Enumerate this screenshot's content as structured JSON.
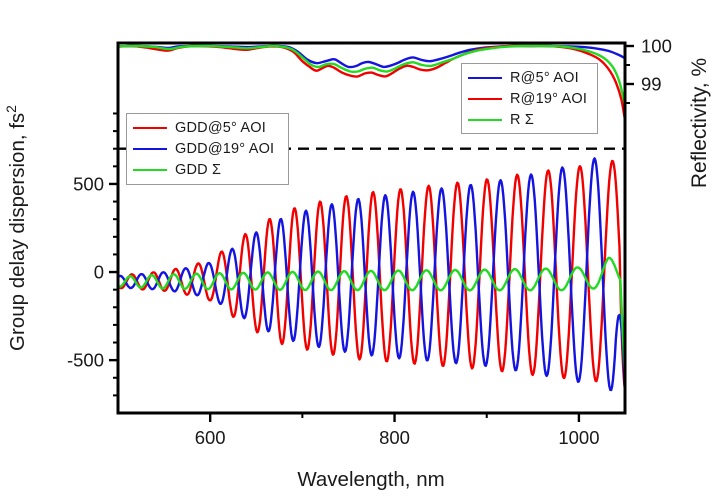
{
  "figure": {
    "background": "#ffffff"
  },
  "colors": {
    "red": "#f20000",
    "blue": "#1414e0",
    "green": "#21da21",
    "axis": "#000000",
    "legend_border": "#9a9a9a"
  },
  "axes": {
    "x": {
      "title": "Wavelength, nm",
      "min": 500,
      "max": 1050,
      "major_ticks": [
        600,
        800,
        1000
      ],
      "major_tick_labels": [
        "600",
        "800",
        "1000"
      ],
      "minor_ticks": [
        700,
        900
      ]
    },
    "y_left": {
      "title_main": "Group delay dispersion, fs",
      "title_sup": "2",
      "range": [
        -800,
        1300
      ],
      "major_ticks": [
        500,
        0,
        -500
      ],
      "major_tick_labels": [
        "500",
        "0",
        "-500"
      ],
      "minor_tick_step": 100,
      "minor_tick_range": [
        -700,
        900
      ]
    },
    "y_right": {
      "title": "Reflectivity, %",
      "major_ticks": [
        100,
        99
      ],
      "major_tick_labels": [
        "100",
        "99"
      ],
      "minor_ticks": [
        99.5,
        98.5
      ]
    }
  },
  "legend_gdd": {
    "items": [
      {
        "label": "GDD@5° AOI",
        "color": "#f20000"
      },
      {
        "label": "GDD@19° AOI",
        "color": "#1414e0"
      },
      {
        "label": "GDD Σ",
        "color": "#21da21"
      }
    ]
  },
  "legend_r": {
    "items": [
      {
        "label": "R@5° AOI",
        "color": "#1414e0"
      },
      {
        "label": "R@19° AOI",
        "color": "#f20000"
      },
      {
        "label": "R Σ",
        "color": "#21da21"
      }
    ]
  },
  "chart_data": {
    "type": "line",
    "title": "",
    "xlabel": "Wavelength, nm",
    "ylabel_left": "Group delay dispersion, fs²",
    "ylabel_right": "Reflectivity, %",
    "x_range_nm": [
      500,
      1050
    ],
    "gdd_axis_range": [
      -800,
      1300
    ],
    "reflectivity_axis": {
      "labeled_ticks": [
        100,
        99
      ],
      "minor_ticks": [
        99.5,
        98.5
      ]
    },
    "separator_line": {
      "gdd_value": 700,
      "style": "dashed",
      "color": "#000000"
    },
    "reflectivity_series": [
      {
        "name": "R@5° AOI",
        "color": "#1414e0",
        "points": [
          [
            500,
            99.99
          ],
          [
            520,
            100
          ],
          [
            540,
            99.98
          ],
          [
            555,
            99.95
          ],
          [
            565,
            99.99
          ],
          [
            580,
            100
          ],
          [
            600,
            100
          ],
          [
            620,
            99.99
          ],
          [
            640,
            99.97
          ],
          [
            655,
            99.99
          ],
          [
            670,
            100
          ],
          [
            685,
            99.97
          ],
          [
            695,
            99.85
          ],
          [
            705,
            99.65
          ],
          [
            715,
            99.55
          ],
          [
            722,
            99.58
          ],
          [
            728,
            99.62
          ],
          [
            735,
            99.65
          ],
          [
            742,
            99.55
          ],
          [
            750,
            99.45
          ],
          [
            758,
            99.47
          ],
          [
            765,
            99.55
          ],
          [
            772,
            99.58
          ],
          [
            780,
            99.52
          ],
          [
            788,
            99.45
          ],
          [
            795,
            99.48
          ],
          [
            803,
            99.55
          ],
          [
            812,
            99.65
          ],
          [
            820,
            99.7
          ],
          [
            830,
            99.63
          ],
          [
            838,
            99.6
          ],
          [
            848,
            99.65
          ],
          [
            858,
            99.72
          ],
          [
            870,
            99.82
          ],
          [
            882,
            99.9
          ],
          [
            895,
            99.95
          ],
          [
            910,
            99.98
          ],
          [
            930,
            100
          ],
          [
            950,
            100
          ],
          [
            970,
            100
          ],
          [
            990,
            99.99
          ],
          [
            1005,
            99.97
          ],
          [
            1020,
            99.93
          ],
          [
            1032,
            99.87
          ],
          [
            1042,
            99.78
          ],
          [
            1050,
            99.68
          ]
        ]
      },
      {
        "name": "R@19° AOI",
        "color": "#f20000",
        "points": [
          [
            500,
            99.98
          ],
          [
            515,
            100
          ],
          [
            530,
            99.96
          ],
          [
            545,
            99.9
          ],
          [
            555,
            99.88
          ],
          [
            565,
            99.95
          ],
          [
            580,
            100
          ],
          [
            600,
            99.99
          ],
          [
            615,
            99.96
          ],
          [
            628,
            99.92
          ],
          [
            640,
            99.9
          ],
          [
            652,
            99.95
          ],
          [
            665,
            99.99
          ],
          [
            678,
            99.97
          ],
          [
            690,
            99.85
          ],
          [
            700,
            99.6
          ],
          [
            708,
            99.45
          ],
          [
            715,
            99.35
          ],
          [
            722,
            99.42
          ],
          [
            728,
            99.48
          ],
          [
            735,
            99.42
          ],
          [
            743,
            99.3
          ],
          [
            752,
            99.22
          ],
          [
            760,
            99.2
          ],
          [
            768,
            99.28
          ],
          [
            775,
            99.3
          ],
          [
            782,
            99.24
          ],
          [
            790,
            99.2
          ],
          [
            797,
            99.28
          ],
          [
            805,
            99.4
          ],
          [
            813,
            99.48
          ],
          [
            820,
            99.45
          ],
          [
            828,
            99.38
          ],
          [
            836,
            99.36
          ],
          [
            845,
            99.42
          ],
          [
            855,
            99.55
          ],
          [
            865,
            99.68
          ],
          [
            877,
            99.8
          ],
          [
            890,
            99.9
          ],
          [
            905,
            99.96
          ],
          [
            925,
            100
          ],
          [
            945,
            100
          ],
          [
            965,
            100
          ],
          [
            982,
            99.97
          ],
          [
            998,
            99.9
          ],
          [
            1010,
            99.8
          ],
          [
            1022,
            99.65
          ],
          [
            1032,
            99.4
          ],
          [
            1040,
            99.05
          ],
          [
            1046,
            98.6
          ],
          [
            1050,
            98.05
          ]
        ]
      },
      {
        "name": "R Σ",
        "color": "#21da21",
        "points": [
          [
            500,
            99.99
          ],
          [
            520,
            100
          ],
          [
            540,
            99.97
          ],
          [
            555,
            99.92
          ],
          [
            570,
            99.98
          ],
          [
            590,
            100
          ],
          [
            610,
            99.99
          ],
          [
            628,
            99.96
          ],
          [
            640,
            99.94
          ],
          [
            655,
            99.97
          ],
          [
            670,
            100
          ],
          [
            688,
            99.92
          ],
          [
            700,
            99.7
          ],
          [
            710,
            99.5
          ],
          [
            718,
            99.45
          ],
          [
            726,
            99.52
          ],
          [
            734,
            99.53
          ],
          [
            742,
            99.43
          ],
          [
            752,
            99.33
          ],
          [
            760,
            99.33
          ],
          [
            768,
            99.4
          ],
          [
            776,
            99.43
          ],
          [
            784,
            99.36
          ],
          [
            792,
            99.33
          ],
          [
            800,
            99.4
          ],
          [
            810,
            99.52
          ],
          [
            820,
            99.57
          ],
          [
            830,
            99.5
          ],
          [
            840,
            99.48
          ],
          [
            852,
            99.57
          ],
          [
            862,
            99.65
          ],
          [
            875,
            99.78
          ],
          [
            888,
            99.87
          ],
          [
            902,
            99.93
          ],
          [
            920,
            99.98
          ],
          [
            940,
            100
          ],
          [
            960,
            100
          ],
          [
            980,
            99.99
          ],
          [
            995,
            99.95
          ],
          [
            1008,
            99.88
          ],
          [
            1020,
            99.78
          ],
          [
            1030,
            99.63
          ],
          [
            1038,
            99.4
          ],
          [
            1044,
            99.05
          ],
          [
            1050,
            98.45
          ]
        ]
      }
    ],
    "fringe_period_model": {
      "base_nm": 24,
      "ref_wavelength": 550,
      "slope_per_nm": 0.024,
      "integration_start": 500
    },
    "gdd_series": [
      {
        "name": "GDD@5° AOI",
        "color": "#f20000",
        "phase_cycles": 0.6,
        "amplitude_anchors": [
          [
            500,
            35
          ],
          [
            550,
            55
          ],
          [
            575,
            80
          ],
          [
            600,
            115
          ],
          [
            625,
            210
          ],
          [
            650,
            300
          ],
          [
            680,
            380
          ],
          [
            720,
            430
          ],
          [
            760,
            470
          ],
          [
            800,
            490
          ],
          [
            850,
            515
          ],
          [
            900,
            540
          ],
          [
            950,
            575
          ],
          [
            1000,
            605
          ],
          [
            1030,
            625
          ],
          [
            1050,
            650
          ]
        ],
        "offset_anchors": [
          [
            500,
            -55
          ],
          [
            620,
            -45
          ],
          [
            700,
            -30
          ],
          [
            850,
            -18
          ],
          [
            1000,
            -5
          ],
          [
            1050,
            0
          ]
        ],
        "tail": {
          "start": 1044,
          "end_value": -670
        }
      },
      {
        "name": "GDD@19° AOI",
        "color": "#1414e0",
        "phase_cycles": 0.15,
        "amplitude_anchors": [
          [
            500,
            32
          ],
          [
            550,
            50
          ],
          [
            575,
            72
          ],
          [
            600,
            100
          ],
          [
            625,
            180
          ],
          [
            650,
            265
          ],
          [
            680,
            345
          ],
          [
            720,
            400
          ],
          [
            760,
            440
          ],
          [
            800,
            465
          ],
          [
            850,
            492
          ],
          [
            900,
            520
          ],
          [
            950,
            565
          ],
          [
            1000,
            620
          ],
          [
            1030,
            670
          ],
          [
            1050,
            670
          ]
        ],
        "offset_anchors": [
          [
            500,
            -55
          ],
          [
            620,
            -45
          ],
          [
            700,
            -30
          ],
          [
            850,
            -18
          ],
          [
            1000,
            -5
          ],
          [
            1050,
            0
          ]
        ],
        "tail": {
          "start": 1040,
          "end_value": -700
        }
      },
      {
        "name": "GDD Σ",
        "color": "#21da21",
        "phase_cycles": 0.68,
        "amplitude_anchors": [
          [
            500,
            28
          ],
          [
            550,
            40
          ],
          [
            600,
            45
          ],
          [
            650,
            48
          ],
          [
            700,
            52
          ],
          [
            780,
            55
          ],
          [
            880,
            58
          ],
          [
            980,
            62
          ],
          [
            1015,
            70
          ],
          [
            1032,
            88
          ],
          [
            1050,
            60
          ]
        ],
        "offset_anchors": [
          [
            500,
            -55
          ],
          [
            700,
            -50
          ],
          [
            900,
            -45
          ],
          [
            1000,
            -40
          ],
          [
            1032,
            -5
          ],
          [
            1050,
            -20
          ]
        ],
        "tail": {
          "start": 1045,
          "end_value": -600
        }
      }
    ]
  }
}
